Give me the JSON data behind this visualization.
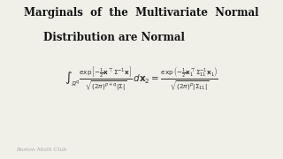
{
  "title_line1": "Marginals  of  the  Multivariate  Normal",
  "title_line2": "Distribution are Normal",
  "formula": "$\\int_{\\mathbb{R}^q} \\frac{\\exp\\left[-\\frac{1}{2}\\mathbf{x}^{\\top}\\Sigma^{-1}\\mathbf{x}\\right]}{\\sqrt{(2\\pi)^{p+q}|\\Sigma|}} \\, d\\mathbf{x}_2 = \\frac{\\exp\\left(-\\frac{1}{2}\\mathbf{x}_1^{\\top}\\Sigma_{11}^{-1}\\mathbf{x}_1\\right)}{\\sqrt{(2\\pi)^{p}|\\Sigma_{11}|}}$",
  "watermark": "Boston Math Club",
  "bg_color": "#f0efe8",
  "title_color": "#111111",
  "formula_color": "#333333",
  "watermark_color": "#aaaaaa",
  "title_fontsize": 8.5,
  "formula_fontsize": 7.5,
  "watermark_fontsize": 4.5
}
